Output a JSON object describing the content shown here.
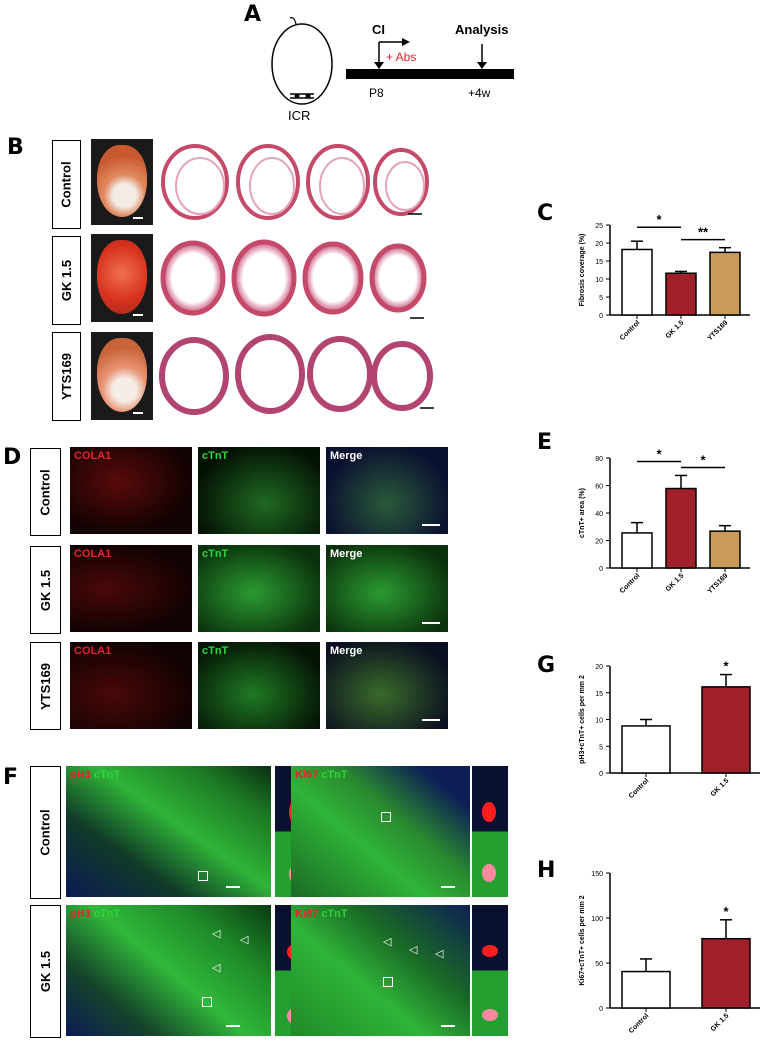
{
  "panel_letters": {
    "a": "A",
    "b": "B",
    "c": "C",
    "d": "D",
    "e": "E",
    "f": "F",
    "g": "G",
    "h": "H"
  },
  "schematic": {
    "mouse": "ICR",
    "ci": "CI",
    "abs": "+ Abs",
    "analysis": "Analysis",
    "t0": "P8",
    "t1": "+4w"
  },
  "rows": {
    "control": "Control",
    "gk": "GK 1.5",
    "yts": "YTS169"
  },
  "stain_labels": {
    "cola1": "COLA1",
    "ctnt": "cTnT",
    "merge": "Merge",
    "ph3": "pH3",
    "ki67": "Ki67"
  },
  "colors": {
    "white_bar": "#ffffff",
    "gk_bar": "#a11f28",
    "yts_bar": "#c99a59",
    "red_text": "#e8232a",
    "green_text": "#2fd53a"
  },
  "chart_data": [
    {
      "id": "C",
      "type": "bar",
      "categories": [
        "Control",
        "GK 1.5",
        "YTS169"
      ],
      "values": [
        18.2,
        11.6,
        17.4
      ],
      "errors": [
        2.3,
        0.5,
        1.3
      ],
      "ylabel": "Fibrosis coverage (%)",
      "ylim": [
        0,
        25
      ],
      "yticks": [
        0,
        5,
        10,
        15,
        20,
        25
      ],
      "significance": [
        {
          "from": 0,
          "to": 1,
          "label": "*"
        },
        {
          "from": 1,
          "to": 2,
          "label": "**"
        }
      ]
    },
    {
      "id": "E",
      "type": "bar",
      "categories": [
        "Control",
        "GK 1.5",
        "YTS169"
      ],
      "values": [
        25.5,
        57.8,
        26.8
      ],
      "errors": [
        7.5,
        9.5,
        4.0
      ],
      "ylabel": "cTnT+ area (%)",
      "ylim": [
        0,
        80
      ],
      "yticks": [
        0,
        20,
        40,
        60,
        80
      ],
      "significance": [
        {
          "from": 0,
          "to": 1,
          "label": "*"
        },
        {
          "from": 1,
          "to": 2,
          "label": "*"
        }
      ]
    },
    {
      "id": "G",
      "type": "bar",
      "categories": [
        "Control",
        "GK 1.5"
      ],
      "values": [
        8.8,
        16.1
      ],
      "errors": [
        1.2,
        2.3
      ],
      "ylabel": "pH3+cTnT+ cells per mm 2",
      "ylim": [
        0,
        20
      ],
      "yticks": [
        0,
        5,
        10,
        15,
        20
      ],
      "significance": [
        {
          "on": 1,
          "label": "*"
        }
      ]
    },
    {
      "id": "H",
      "type": "bar",
      "categories": [
        "Control",
        "GK 1.5"
      ],
      "values": [
        40.5,
        77.0
      ],
      "errors": [
        14.0,
        21.0
      ],
      "ylabel": "Ki67+cTnT+ cells per mm 2",
      "ylim": [
        0,
        150
      ],
      "yticks": [
        0,
        50,
        100,
        150
      ],
      "significance": [
        {
          "on": 1,
          "label": "*"
        }
      ]
    }
  ]
}
